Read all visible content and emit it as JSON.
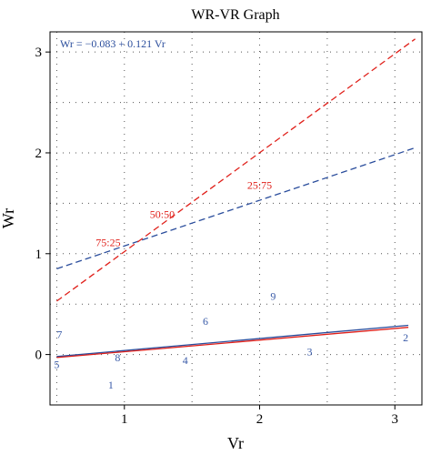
{
  "chart_data": {
    "type": "line",
    "title": "WR-VR Graph",
    "xlabel": "Vr",
    "ylabel": "Wr",
    "xlim": [
      0.45,
      3.2
    ],
    "ylim": [
      -0.5,
      3.2
    ],
    "x_ticks": [
      1,
      2,
      3
    ],
    "y_ticks": [
      0,
      1,
      2,
      3
    ],
    "grid": true,
    "equation": "Wr = −0.083 + 0.121 Vr",
    "series": [
      {
        "style": "blue dashed",
        "x": [
          0.5,
          3.15
        ],
        "y": [
          0.85,
          2.05
        ]
      },
      {
        "style": "red dashed",
        "x": [
          0.5,
          3.15
        ],
        "y": [
          0.53,
          3.13
        ]
      },
      {
        "style": "blue solid",
        "x": [
          0.5,
          3.1
        ],
        "y": [
          -0.02,
          0.29
        ]
      },
      {
        "style": "red solid",
        "x": [
          0.5,
          3.1
        ],
        "y": [
          -0.03,
          0.27
        ]
      }
    ],
    "ratio_labels": [
      {
        "text": "25:75",
        "x": 2.0,
        "y": 1.68
      },
      {
        "text": "50:50",
        "x": 1.28,
        "y": 1.39
      },
      {
        "text": "75:25",
        "x": 0.88,
        "y": 1.11
      }
    ],
    "points": [
      {
        "label": "1",
        "x": 0.9,
        "y": -0.3
      },
      {
        "label": "2",
        "x": 3.08,
        "y": 0.17
      },
      {
        "label": "3",
        "x": 2.37,
        "y": 0.03
      },
      {
        "label": "4",
        "x": 1.45,
        "y": -0.06
      },
      {
        "label": "5",
        "x": 0.5,
        "y": -0.1
      },
      {
        "label": "6",
        "x": 1.6,
        "y": 0.33
      },
      {
        "label": "7",
        "x": 0.52,
        "y": 0.2
      },
      {
        "label": "8",
        "x": 0.95,
        "y": -0.03
      },
      {
        "label": "9",
        "x": 2.1,
        "y": 0.58
      }
    ]
  }
}
